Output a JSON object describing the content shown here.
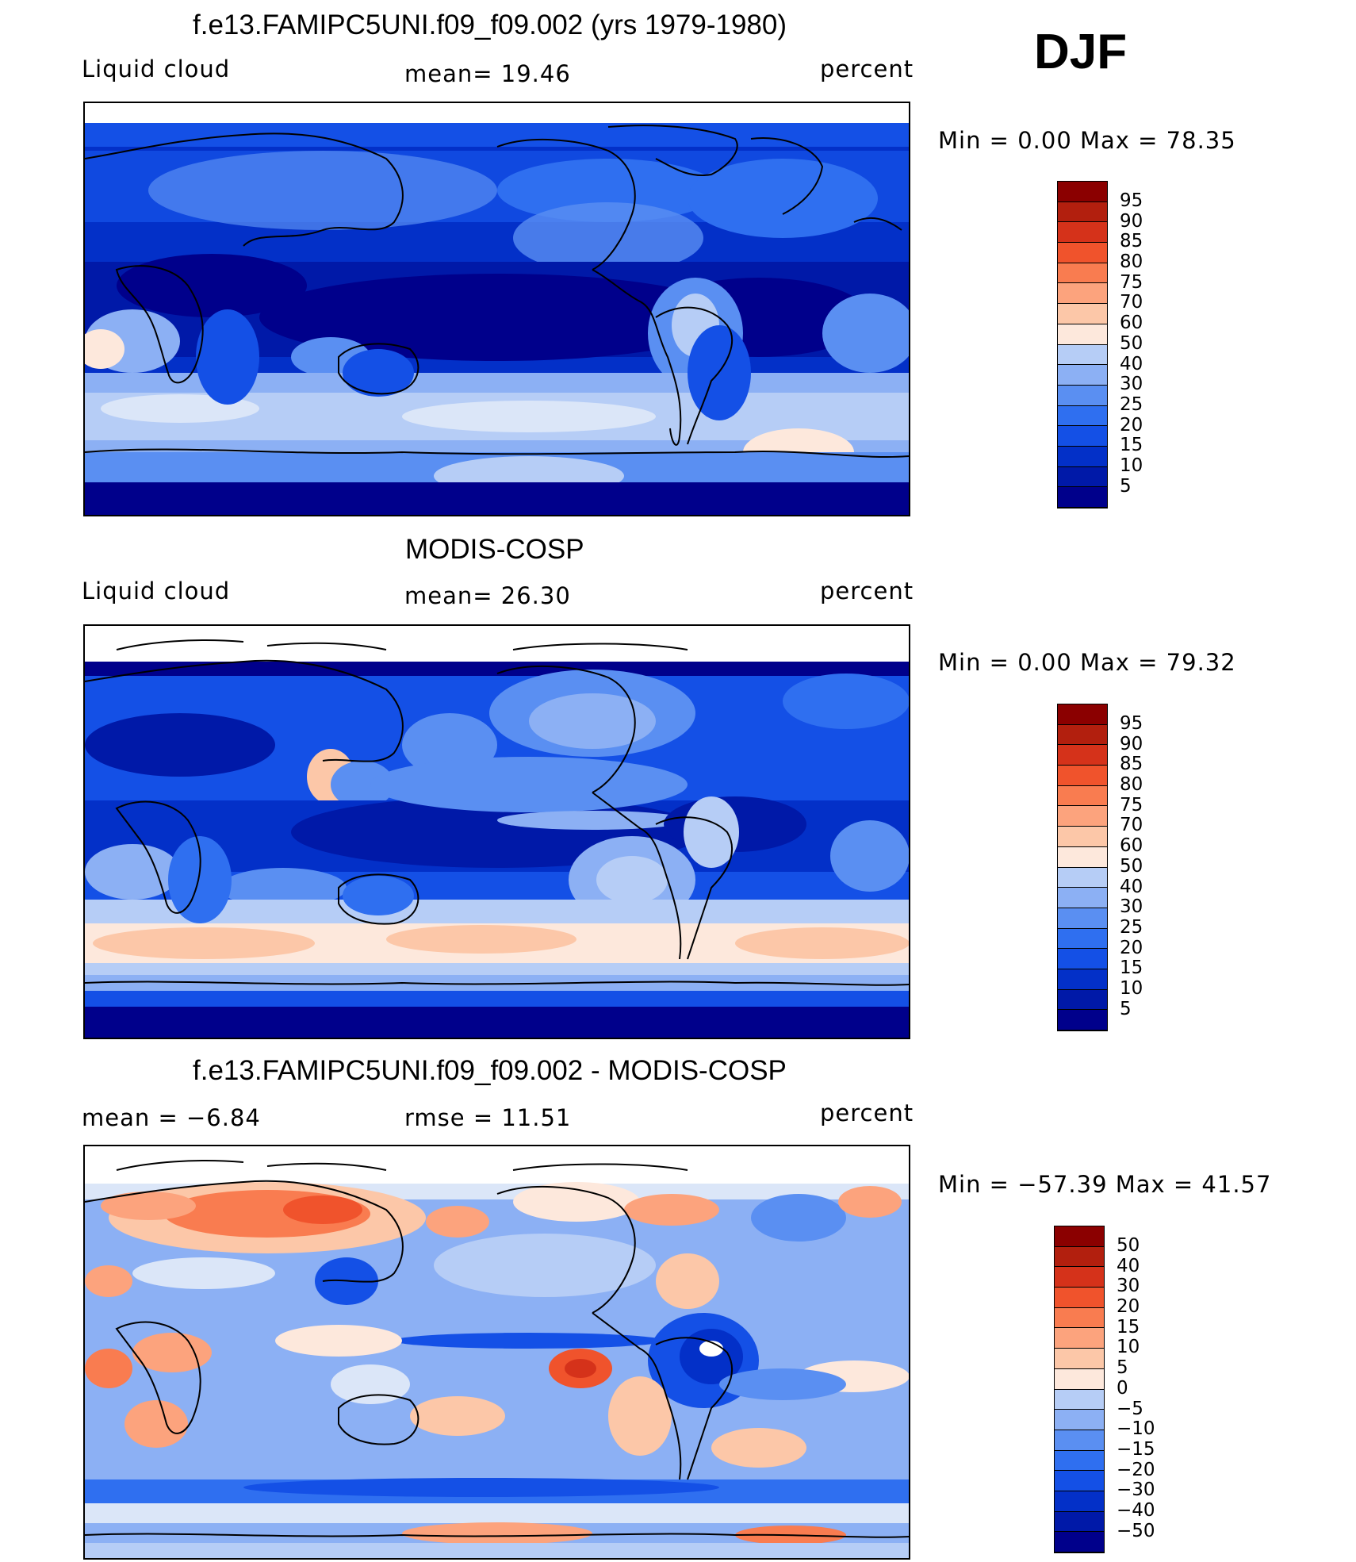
{
  "season": "DJF",
  "palettes": {
    "absolute": [
      "#00008b",
      "#0019a8",
      "#0330c8",
      "#1450e6",
      "#2f6ff0",
      "#5a8ff2",
      "#8cb0f4",
      "#b6cdf6",
      "#dbe6f8",
      "#fde8dc",
      "#fcc7a8",
      "#fca37d",
      "#f97c50",
      "#f0532c",
      "#d5321a",
      "#b21f0e",
      "#8b0000"
    ],
    "difference": [
      "#00008b",
      "#0019a8",
      "#0330c8",
      "#1450e6",
      "#2f6ff0",
      "#5a8ff2",
      "#8cb0f4",
      "#b6cdf6",
      "#dbe6f8",
      "#fde8dc",
      "#fcc7a8",
      "#fca37d",
      "#f97c50",
      "#f0532c",
      "#d5321a",
      "#b21f0e",
      "#8b0000"
    ]
  },
  "panels": [
    {
      "title": "f.e13.FAMIPC5UNI.f09_f09.002 (yrs 1979-1980)",
      "left_label": "Liquid cloud",
      "center_label": "mean=   19.46",
      "right_label": "percent",
      "minmax": "Min  =     0.00  Max  =    78.35",
      "colorbar_levels": [
        "95",
        "90",
        "85",
        "80",
        "75",
        "70",
        "60",
        "50",
        "40",
        "30",
        "25",
        "20",
        "15",
        "10",
        "5"
      ],
      "mean": 19.46,
      "min": 0.0,
      "max": 78.35
    },
    {
      "title": "MODIS-COSP",
      "left_label": "Liquid cloud",
      "center_label": "mean=   26.30",
      "right_label": "percent",
      "minmax": "Min  =     0.00  Max  =    79.32",
      "colorbar_levels": [
        "95",
        "90",
        "85",
        "80",
        "75",
        "70",
        "60",
        "50",
        "40",
        "30",
        "25",
        "20",
        "15",
        "10",
        "5"
      ],
      "mean": 26.3,
      "min": 0.0,
      "max": 79.32
    },
    {
      "title": "f.e13.FAMIPC5UNI.f09_f09.002 - MODIS-COSP",
      "left_label": "mean  =    −6.84",
      "center_label": "rmse  =    11.51",
      "right_label": "percent",
      "minmax": "Min  = −57.39  Max  =    41.57",
      "colorbar_levels": [
        "50",
        "40",
        "30",
        "20",
        "15",
        "10",
        "5",
        "0",
        "−5",
        "−10",
        "−15",
        "−20",
        "−30",
        "−40",
        "−50"
      ],
      "mean": -6.84,
      "rmse": 11.51,
      "min": -57.39,
      "max": 41.57
    }
  ]
}
